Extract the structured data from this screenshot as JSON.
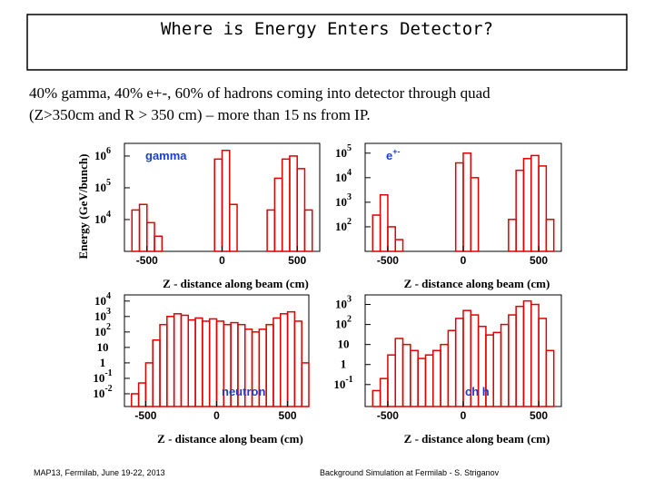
{
  "slide": {
    "title": "Where is Energy Enters Detector?",
    "body_line_1": "40% gamma, 40%  e+-, 60% of hadrons coming into detector through quad",
    "body_line_2": "(Z>350cm and R > 350 cm) –  more than 15 ns from IP.",
    "footer_left": "MAP13, Fermilab, June 19-22, 2013",
    "footer_right": "Background Simulation at Fermilab - S. Striganov"
  },
  "chart_data": [
    {
      "type": "histogram",
      "label": "gamma",
      "label_color": "#1a3fd0",
      "xlabel": "Z - distance along beam (cm)",
      "ylabel": "Energy (GeV/bunch)",
      "color": "#e00000",
      "log_y": true,
      "bins": [
        -650,
        -600,
        -550,
        -500,
        -450,
        -400,
        -350,
        -300,
        -250,
        -200,
        -150,
        -100,
        -50,
        0,
        50,
        100,
        150,
        200,
        250,
        300,
        350,
        400,
        450,
        500,
        550,
        600,
        650
      ],
      "values": [
        0,
        20000,
        30000,
        8000,
        3000,
        0,
        0,
        0,
        0,
        0,
        0,
        0,
        800000,
        1500000,
        30000,
        0,
        0,
        0,
        0,
        20000,
        200000,
        800000,
        1000000,
        400000,
        20000,
        0
      ],
      "xlim": [
        -650,
        650
      ],
      "ylim": [
        1000,
        2500000
      ],
      "xticks": [
        -500,
        0,
        500
      ],
      "yticks": [
        {
          "value": 10000,
          "label": "10",
          "exp": "4"
        },
        {
          "value": 100000,
          "label": "10",
          "exp": "5"
        },
        {
          "value": 1000000,
          "label": "10",
          "exp": "6"
        }
      ]
    },
    {
      "type": "histogram",
      "label": "e",
      "label_sup": "+-",
      "label_color": "#1a3fd0",
      "xlabel": "Z - distance along beam (cm)",
      "color": "#e00000",
      "log_y": true,
      "bins": [
        -650,
        -600,
        -550,
        -500,
        -450,
        -400,
        -350,
        -300,
        -250,
        -200,
        -150,
        -100,
        -50,
        0,
        50,
        100,
        150,
        200,
        250,
        300,
        350,
        400,
        450,
        500,
        550,
        600,
        650
      ],
      "values": [
        0,
        300,
        2000,
        100,
        30,
        0,
        0,
        0,
        0,
        0,
        0,
        0,
        40000,
        100000,
        10000,
        0,
        0,
        0,
        0,
        200,
        20000,
        60000,
        80000,
        30000,
        200,
        0
      ],
      "xlim": [
        -650,
        650
      ],
      "ylim": [
        10,
        250000
      ],
      "xticks": [
        -500,
        0,
        500
      ],
      "yticks": [
        {
          "value": 100,
          "label": "10",
          "exp": "2"
        },
        {
          "value": 1000,
          "label": "10",
          "exp": "3"
        },
        {
          "value": 10000,
          "label": "10",
          "exp": "4"
        },
        {
          "value": 100000,
          "label": "10",
          "exp": "5"
        }
      ]
    },
    {
      "type": "histogram",
      "label": "neutron",
      "label_color": "#1a3fd0",
      "xlabel": "Z - distance along beam (cm)",
      "color": "#e00000",
      "log_y": true,
      "bins": [
        -650,
        -600,
        -550,
        -500,
        -450,
        -400,
        -350,
        -300,
        -250,
        -200,
        -150,
        -100,
        -50,
        0,
        50,
        100,
        150,
        200,
        250,
        300,
        350,
        400,
        450,
        500,
        550,
        600,
        650
      ],
      "values": [
        0,
        0.01,
        0.05,
        1,
        30,
        300,
        1000,
        1500,
        1200,
        600,
        800,
        500,
        700,
        500,
        300,
        400,
        300,
        150,
        100,
        150,
        300,
        800,
        1500,
        2000,
        500,
        1
      ],
      "xlim": [
        -650,
        650
      ],
      "ylim": [
        0.0015,
        25000
      ],
      "xticks": [
        -500,
        0,
        500
      ],
      "yticks": [
        {
          "value": 0.01,
          "label": "10",
          "exp": "-2"
        },
        {
          "value": 0.1,
          "label": "10",
          "exp": "-1"
        },
        {
          "value": 1,
          "label": "1"
        },
        {
          "value": 10,
          "label": "10"
        },
        {
          "value": 100,
          "label": "10",
          "exp": "2"
        },
        {
          "value": 1000,
          "label": "10",
          "exp": "3"
        },
        {
          "value": 10000,
          "label": "10",
          "exp": "4"
        }
      ]
    },
    {
      "type": "histogram",
      "label": "ch h",
      "label_color": "#1a3fd0",
      "xlabel": "Z - distance along beam (cm)",
      "color": "#e00000",
      "log_y": true,
      "bins": [
        -650,
        -600,
        -550,
        -500,
        -450,
        -400,
        -350,
        -300,
        -250,
        -200,
        -150,
        -100,
        -50,
        0,
        50,
        100,
        150,
        200,
        250,
        300,
        350,
        400,
        450,
        500,
        550,
        600,
        650
      ],
      "values": [
        0,
        0.05,
        0.2,
        3,
        20,
        10,
        5,
        2,
        3,
        5,
        10,
        50,
        200,
        500,
        300,
        80,
        30,
        40,
        100,
        300,
        800,
        1500,
        1000,
        200,
        5,
        0
      ],
      "xlim": [
        -650,
        650
      ],
      "ylim": [
        0.008,
        3000
      ],
      "xticks": [
        -500,
        0,
        500
      ],
      "yticks": [
        {
          "value": 0.1,
          "label": "10",
          "exp": "-1"
        },
        {
          "value": 1,
          "label": "1"
        },
        {
          "value": 10,
          "label": "10"
        },
        {
          "value": 100,
          "label": "10",
          "exp": "2"
        },
        {
          "value": 1000,
          "label": "10",
          "exp": "3"
        }
      ]
    }
  ]
}
